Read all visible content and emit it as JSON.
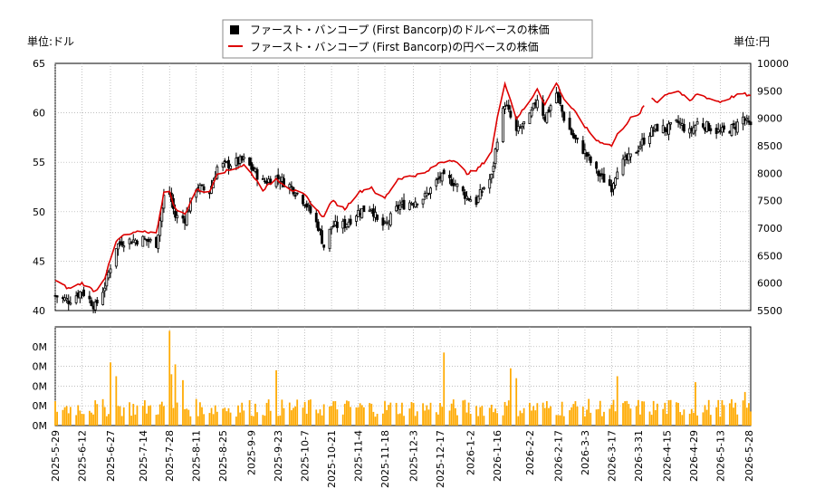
{
  "chart_data": [
    {
      "type": "candlestick-line",
      "unit_left": "単位:ドル",
      "unit_right": "単位:円",
      "legend": [
        {
          "label": "ファースト・バンコープ (First Bancorp)のドルベースの株価",
          "color": "#000000",
          "marker": "square"
        },
        {
          "label": "ファースト・バンコープ (First Bancorp)の円ベースの株価",
          "color": "#dd0000",
          "marker": "line"
        }
      ],
      "legend_position": "top-center",
      "y_left": {
        "min": 40,
        "max": 65,
        "ticks": [
          40,
          45,
          50,
          55,
          60,
          65
        ]
      },
      "y_right": {
        "min": 5500,
        "max": 10000,
        "ticks": [
          5500,
          6000,
          6500,
          7000,
          7500,
          8000,
          8500,
          9000,
          9500,
          10000
        ]
      },
      "date_start": "2025-05-29",
      "date_end": "2026-05-29",
      "grid": true,
      "anchors_usd_close": [
        [
          "2025-05-29",
          41.5
        ],
        [
          "2025-06-05",
          41.0
        ],
        [
          "2025-06-12",
          42.0
        ],
        [
          "2025-06-19",
          40.4
        ],
        [
          "2025-06-24",
          42.5
        ],
        [
          "2025-06-30",
          46.5
        ],
        [
          "2025-07-03",
          47.0
        ],
        [
          "2025-07-14",
          47.2
        ],
        [
          "2025-07-21",
          46.8
        ],
        [
          "2025-07-25",
          51.5
        ],
        [
          "2025-07-28",
          51.8
        ],
        [
          "2025-07-31",
          49.5
        ],
        [
          "2025-08-05",
          49.3
        ],
        [
          "2025-08-11",
          52.5
        ],
        [
          "2025-08-18",
          52.0
        ],
        [
          "2025-08-22",
          54.5
        ],
        [
          "2025-08-28",
          54.8
        ],
        [
          "2025-09-05",
          55.2
        ],
        [
          "2025-09-10",
          54.2
        ],
        [
          "2025-09-15",
          53.0
        ],
        [
          "2025-09-22",
          53.5
        ],
        [
          "2025-09-30",
          52.5
        ],
        [
          "2025-10-07",
          51.0
        ],
        [
          "2025-10-14",
          48.5
        ],
        [
          "2025-10-17",
          46.5
        ],
        [
          "2025-10-21",
          48.5
        ],
        [
          "2025-10-28",
          48.7
        ],
        [
          "2025-11-04",
          50.0
        ],
        [
          "2025-11-11",
          50.5
        ],
        [
          "2025-11-14",
          49.0
        ],
        [
          "2025-11-18",
          48.5
        ],
        [
          "2025-11-25",
          50.5
        ],
        [
          "2025-12-02",
          51.0
        ],
        [
          "2025-12-09",
          51.5
        ],
        [
          "2025-12-17",
          53.5
        ],
        [
          "2025-12-24",
          53.0
        ],
        [
          "2025-12-31",
          51.5
        ],
        [
          "2026-01-05",
          51.0
        ],
        [
          "2026-01-09",
          52.5
        ],
        [
          "2026-01-13",
          53.5
        ],
        [
          "2026-01-16",
          57.5
        ],
        [
          "2026-01-20",
          61.0
        ],
        [
          "2026-01-26",
          58.0
        ],
        [
          "2026-02-02",
          59.5
        ],
        [
          "2026-02-06",
          61.5
        ],
        [
          "2026-02-10",
          59.5
        ],
        [
          "2026-02-16",
          62.0
        ],
        [
          "2026-02-20",
          59.5
        ],
        [
          "2026-02-25",
          57.5
        ],
        [
          "2026-03-03",
          56.0
        ],
        [
          "2026-03-09",
          54.0
        ],
        [
          "2026-03-17",
          52.5
        ],
        [
          "2026-03-20",
          54.5
        ],
        [
          "2026-03-27",
          55.5
        ],
        [
          "2026-03-31",
          56.5
        ],
        [
          "2026-04-06",
          58.0
        ],
        [
          "2026-04-10",
          58.5
        ],
        [
          "2026-04-15",
          58.3
        ],
        [
          "2026-04-21",
          59.0
        ],
        [
          "2026-04-27",
          58.0
        ],
        [
          "2026-05-01",
          59.0
        ],
        [
          "2026-05-08",
          58.5
        ],
        [
          "2026-05-13",
          58.0
        ],
        [
          "2026-05-20",
          58.5
        ],
        [
          "2026-05-25",
          59.5
        ],
        [
          "2026-05-29",
          58.5
        ]
      ],
      "anchors_jpy": [
        [
          "2025-05-29",
          6050
        ],
        [
          "2025-06-05",
          5900
        ],
        [
          "2025-06-12",
          6000
        ],
        [
          "2025-06-19",
          5850
        ],
        [
          "2025-06-24",
          6100
        ],
        [
          "2025-06-30",
          6750
        ],
        [
          "2025-07-03",
          6850
        ],
        [
          "2025-07-14",
          6950
        ],
        [
          "2025-07-21",
          6900
        ],
        [
          "2025-07-25",
          7650
        ],
        [
          "2025-07-28",
          7650
        ],
        [
          "2025-07-31",
          7350
        ],
        [
          "2025-08-05",
          7250
        ],
        [
          "2025-08-11",
          7700
        ],
        [
          "2025-08-18",
          7650
        ],
        [
          "2025-08-22",
          8000
        ],
        [
          "2025-08-28",
          8050
        ],
        [
          "2025-09-05",
          8150
        ],
        [
          "2025-09-10",
          7950
        ],
        [
          "2025-09-15",
          7700
        ],
        [
          "2025-09-22",
          7900
        ],
        [
          "2025-09-30",
          7700
        ],
        [
          "2025-10-07",
          7600
        ],
        [
          "2025-10-14",
          7300
        ],
        [
          "2025-10-17",
          7200
        ],
        [
          "2025-10-21",
          7500
        ],
        [
          "2025-10-28",
          7350
        ],
        [
          "2025-11-04",
          7650
        ],
        [
          "2025-11-11",
          7750
        ],
        [
          "2025-11-14",
          7600
        ],
        [
          "2025-11-18",
          7550
        ],
        [
          "2025-11-25",
          7900
        ],
        [
          "2025-12-02",
          7950
        ],
        [
          "2025-12-09",
          8000
        ],
        [
          "2025-12-17",
          8200
        ],
        [
          "2025-12-24",
          8250
        ],
        [
          "2025-12-31",
          8000
        ],
        [
          "2026-01-05",
          8050
        ],
        [
          "2026-01-09",
          8200
        ],
        [
          "2026-01-13",
          8400
        ],
        [
          "2026-01-16",
          9000
        ],
        [
          "2026-01-20",
          9650
        ],
        [
          "2026-01-26",
          9000
        ],
        [
          "2026-02-02",
          9300
        ],
        [
          "2026-02-06",
          9550
        ],
        [
          "2026-02-10",
          9250
        ],
        [
          "2026-02-16",
          9650
        ],
        [
          "2026-02-20",
          9350
        ],
        [
          "2026-02-25",
          9150
        ],
        [
          "2026-03-03",
          8850
        ],
        [
          "2026-03-09",
          8600
        ],
        [
          "2026-03-17",
          8500
        ],
        [
          "2026-03-20",
          8700
        ],
        [
          "2026-03-27",
          9000
        ],
        [
          "2026-03-31",
          9050
        ],
        [
          "2026-04-06",
          9400
        ],
        [
          "2026-04-10",
          9300
        ],
        [
          "2026-04-15",
          9450
        ],
        [
          "2026-04-21",
          9500
        ],
        [
          "2026-04-27",
          9300
        ],
        [
          "2026-05-01",
          9450
        ],
        [
          "2026-05-08",
          9350
        ],
        [
          "2026-05-13",
          9300
        ],
        [
          "2026-05-20",
          9400
        ],
        [
          "2026-05-25",
          9450
        ],
        [
          "2026-05-29",
          9400
        ]
      ],
      "gaps": [
        "2026-04-06"
      ]
    },
    {
      "type": "bar",
      "name": "volume",
      "color": "#ffaa00",
      "y": {
        "min": 0,
        "max": 5,
        "ticks": [
          0,
          1,
          2,
          3,
          4
        ],
        "tick_labels": [
          "0M",
          "0M",
          "0M",
          "0M",
          "0M"
        ]
      },
      "baseline": 1.0,
      "spikes": [
        [
          "2025-06-27",
          3.2
        ],
        [
          "2025-06-30",
          2.5
        ],
        [
          "2025-07-28",
          4.8
        ],
        [
          "2025-07-29",
          2.6
        ],
        [
          "2025-07-31",
          3.1
        ],
        [
          "2025-08-04",
          2.3
        ],
        [
          "2025-09-22",
          2.8
        ],
        [
          "2025-12-19",
          3.7
        ],
        [
          "2026-01-23",
          2.9
        ],
        [
          "2026-01-26",
          2.4
        ],
        [
          "2026-03-20",
          2.5
        ],
        [
          "2026-04-30",
          2.2
        ],
        [
          "2026-05-26",
          1.7
        ]
      ],
      "x_ticks": [
        "2025-5-29",
        "2025-6-12",
        "2025-6-27",
        "2025-7-14",
        "2025-7-28",
        "2025-8-11",
        "2025-8-25",
        "2025-9-9",
        "2025-9-23",
        "2025-10-7",
        "2025-10-21",
        "2025-11-4",
        "2025-11-18",
        "2025-12-3",
        "2025-12-17",
        "2026-1-2",
        "2026-1-16",
        "2026-2-2",
        "2026-2-17",
        "2026-3-3",
        "2026-3-17",
        "2026-3-31",
        "2026-4-15",
        "2026-4-29",
        "2026-5-13",
        "2026-5-28"
      ]
    }
  ]
}
